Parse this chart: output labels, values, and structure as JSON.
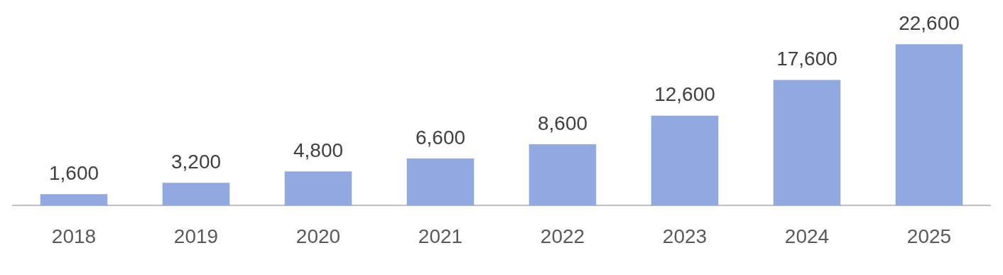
{
  "chart_data": {
    "type": "bar",
    "categories": [
      "2018",
      "2019",
      "2020",
      "2021",
      "2022",
      "2023",
      "2024",
      "2025"
    ],
    "values": [
      1600,
      3200,
      4800,
      6600,
      8600,
      12600,
      17600,
      22600
    ],
    "color": "#91a8e0",
    "value_labels": [
      "1,600",
      "3,200",
      "4,800",
      "6,600",
      "8,600",
      "12,600",
      "17,600",
      "22,600"
    ],
    "grid": false,
    "legend": false
  }
}
